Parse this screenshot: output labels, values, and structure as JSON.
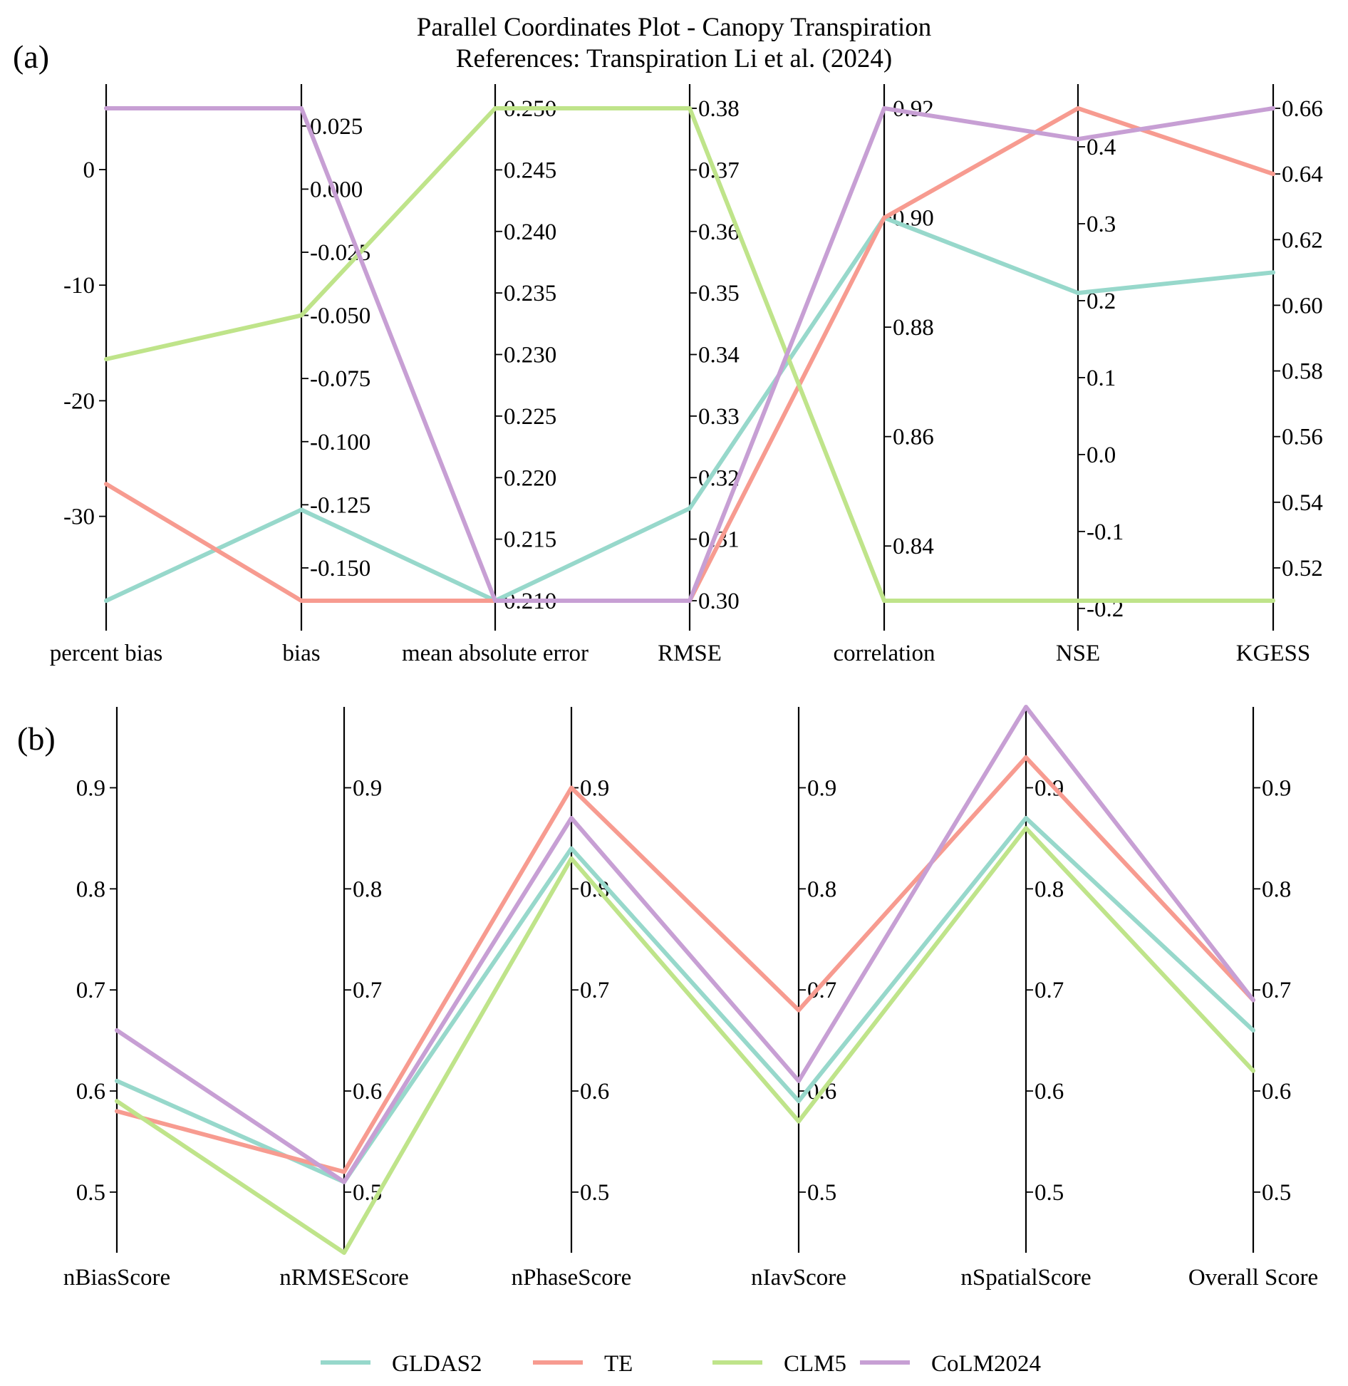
{
  "chart_data": [
    {
      "type": "parallel-coordinates",
      "title": "Parallel Coordinates Plot - Canopy Transpiration",
      "subtitle": "References: Transpiration Li et al. (2024)",
      "panel_label": "(a)",
      "axes": [
        {
          "name": "percent bias",
          "range": [
            -37.3,
            5.3
          ],
          "ticks": [
            0,
            -10,
            -20,
            -30
          ],
          "tick_labels": [
            "0",
            "-10",
            "-20",
            "-30"
          ]
        },
        {
          "name": "bias",
          "range": [
            -0.163,
            0.032
          ],
          "ticks": [
            0.025,
            0.0,
            -0.025,
            -0.05,
            -0.075,
            -0.1,
            -0.125,
            -0.15
          ],
          "tick_labels": [
            "0.025",
            "0.000",
            "-0.025",
            "-0.050",
            "-0.075",
            "-0.100",
            "-0.125",
            "-0.150"
          ]
        },
        {
          "name": "mean absolute error",
          "range": [
            0.21,
            0.25
          ],
          "ticks": [
            0.25,
            0.245,
            0.24,
            0.235,
            0.23,
            0.225,
            0.22,
            0.215,
            0.21
          ],
          "tick_labels": [
            "0.250",
            "0.245",
            "0.240",
            "0.235",
            "0.230",
            "0.225",
            "0.220",
            "0.215",
            "0.210"
          ]
        },
        {
          "name": "RMSE",
          "range": [
            0.3,
            0.38
          ],
          "ticks": [
            0.38,
            0.37,
            0.36,
            0.35,
            0.34,
            0.33,
            0.32,
            0.31,
            0.3
          ],
          "tick_labels": [
            "0.38",
            "0.37",
            "0.36",
            "0.35",
            "0.34",
            "0.33",
            "0.32",
            "0.31",
            "0.30"
          ]
        },
        {
          "name": "correlation",
          "range": [
            0.83,
            0.92
          ],
          "ticks": [
            0.92,
            0.9,
            0.88,
            0.86,
            0.84
          ],
          "tick_labels": [
            "0.92",
            "0.90",
            "0.88",
            "0.86",
            "0.84"
          ]
        },
        {
          "name": "NSE",
          "range": [
            -0.19,
            0.45
          ],
          "ticks": [
            0.4,
            0.3,
            0.2,
            0.1,
            0.0,
            -0.1,
            -0.2
          ],
          "tick_labels": [
            "0.4",
            "0.3",
            "0.2",
            "0.1",
            "0.0",
            "-0.1",
            "-0.2"
          ]
        },
        {
          "name": "KGESS",
          "range": [
            0.51,
            0.66
          ],
          "ticks": [
            0.66,
            0.64,
            0.62,
            0.6,
            0.58,
            0.56,
            0.54,
            0.52
          ],
          "tick_labels": [
            "0.66",
            "0.64",
            "0.62",
            "0.60",
            "0.58",
            "0.56",
            "0.54",
            "0.52"
          ]
        }
      ],
      "series": [
        {
          "name": "GLDAS2",
          "values": [
            -37.3,
            -0.127,
            0.21,
            0.315,
            0.9,
            0.21,
            0.61
          ]
        },
        {
          "name": "TE",
          "values": [
            -27.2,
            -0.163,
            0.21,
            0.3,
            0.9,
            0.45,
            0.64
          ]
        },
        {
          "name": "CLM5",
          "values": [
            -16.4,
            -0.05,
            0.25,
            0.38,
            0.83,
            -0.19,
            0.51
          ]
        },
        {
          "name": "CoLM2024",
          "values": [
            5.3,
            0.032,
            0.21,
            0.3,
            0.92,
            0.41,
            0.66
          ]
        }
      ]
    },
    {
      "type": "parallel-coordinates",
      "panel_label": "(b)",
      "yrange": [
        0.44,
        0.98
      ],
      "ticks": [
        0.9,
        0.8,
        0.7,
        0.6,
        0.5
      ],
      "tick_labels": [
        "0.9",
        "0.8",
        "0.7",
        "0.6",
        "0.5"
      ],
      "axes": [
        "nBiasScore",
        "nRMSEScore",
        "nPhaseScore",
        "nIavScore",
        "nSpatialScore",
        "Overall Score"
      ],
      "series": [
        {
          "name": "GLDAS2",
          "values": [
            0.61,
            0.51,
            0.84,
            0.59,
            0.87,
            0.66
          ]
        },
        {
          "name": "TE",
          "values": [
            0.58,
            0.52,
            0.9,
            0.68,
            0.93,
            0.69
          ]
        },
        {
          "name": "CLM5",
          "values": [
            0.59,
            0.44,
            0.83,
            0.57,
            0.86,
            0.62
          ]
        },
        {
          "name": "CoLM2024",
          "values": [
            0.66,
            0.51,
            0.87,
            0.61,
            0.98,
            0.69
          ]
        }
      ]
    }
  ],
  "legend": [
    {
      "name": "GLDAS2",
      "color": "#97d8cb"
    },
    {
      "name": "TE",
      "color": "#f79b90"
    },
    {
      "name": "CLM5",
      "color": "#bfe48a"
    },
    {
      "name": "CoLM2024",
      "color": "#c79fd4"
    }
  ]
}
